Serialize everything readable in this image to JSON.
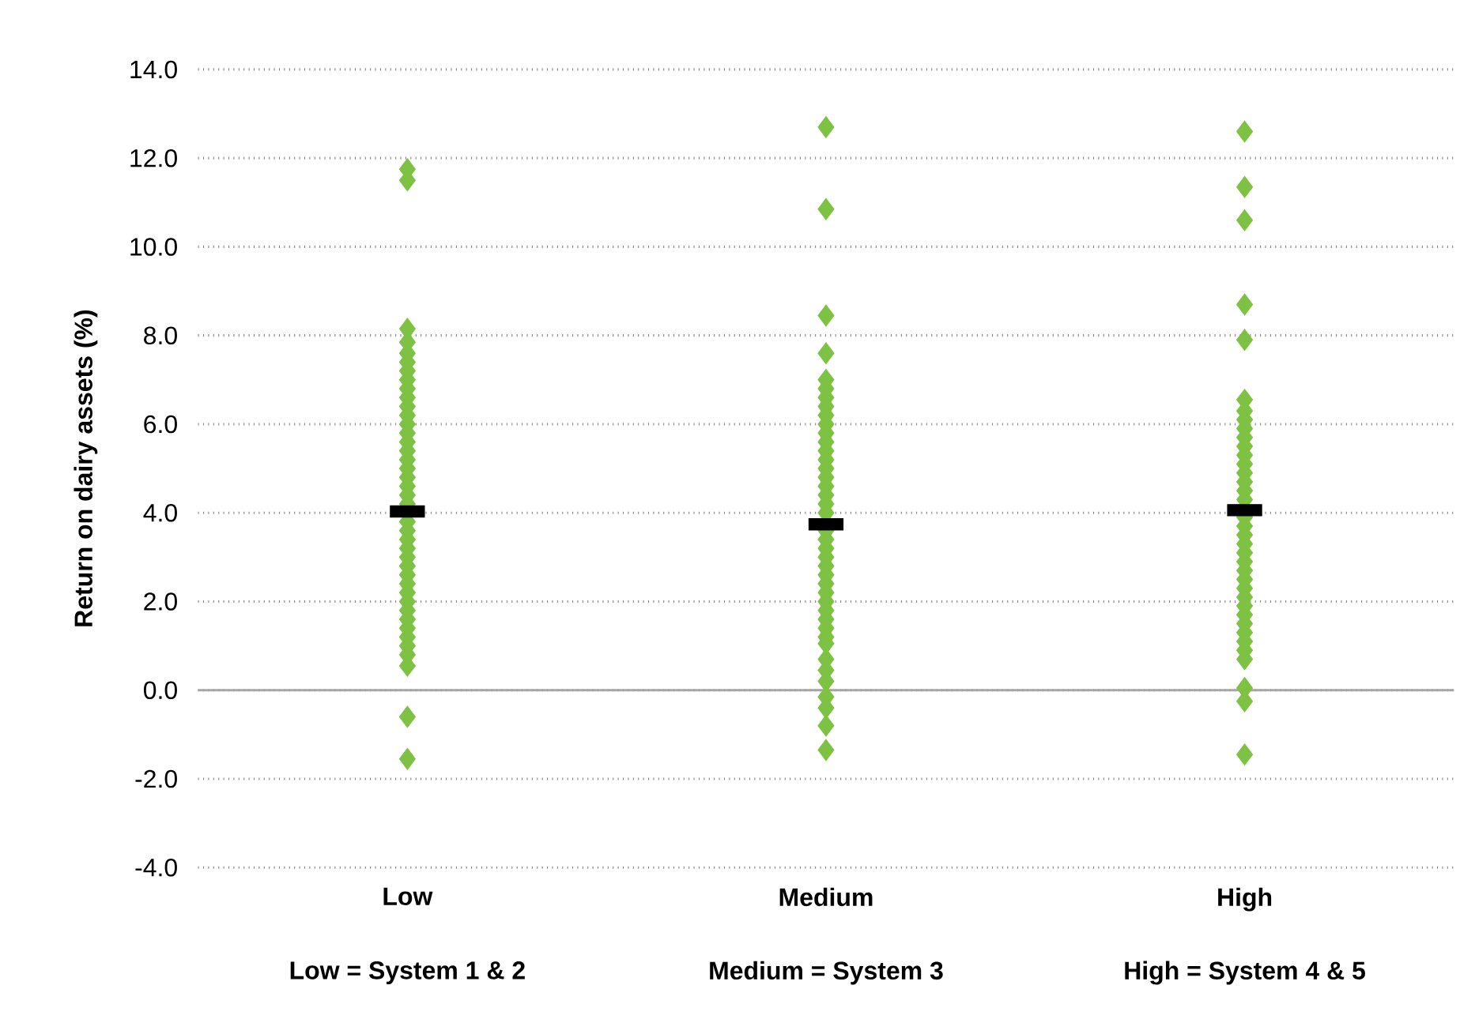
{
  "chart_data": {
    "type": "scatter",
    "ylabel": "Return on dairy assets (%)",
    "categories": [
      "Low",
      "Medium",
      "High"
    ],
    "ylim": [
      -4,
      14
    ],
    "yticks": [
      {
        "value": -4,
        "label": "-4.0"
      },
      {
        "value": -2,
        "label": "-2.0"
      },
      {
        "value": 0,
        "label": "0.0"
      },
      {
        "value": 2,
        "label": "2.0"
      },
      {
        "value": 4,
        "label": "4.0"
      },
      {
        "value": 6,
        "label": "6.0"
      },
      {
        "value": 8,
        "label": "8.0"
      },
      {
        "value": 10,
        "label": "10.0"
      },
      {
        "value": 12,
        "label": "12.0"
      },
      {
        "value": 14,
        "label": "14.0"
      }
    ],
    "grid": "y",
    "ref_lines": [
      {
        "axis": "y",
        "value": 0,
        "color": "#a6a6a6",
        "line_style": "solid"
      }
    ],
    "annotations": [
      "Low = System 1 & 2",
      "Medium = System 3",
      "High = System 4 & 5"
    ],
    "series": [
      {
        "color": "#7dc242",
        "marker": "diamond",
        "x": [
          "Low",
          "Low",
          "Low",
          "Low",
          "Low",
          "Low",
          "Low",
          "Low",
          "Low",
          "Low",
          "Low",
          "Low",
          "Low",
          "Low",
          "Low",
          "Low",
          "Low",
          "Low",
          "Low",
          "Low",
          "Low",
          "Low",
          "Low",
          "Low",
          "Low",
          "Low",
          "Low",
          "Low",
          "Low",
          "Low",
          "Low",
          "Low",
          "Low",
          "Low",
          "Low",
          "Low",
          "Low",
          "Low",
          "Low",
          "Low",
          "Low",
          "Medium",
          "Medium",
          "Medium",
          "Medium",
          "Medium",
          "Medium",
          "Medium",
          "Medium",
          "Medium",
          "Medium",
          "Medium",
          "Medium",
          "Medium",
          "Medium",
          "Medium",
          "Medium",
          "Medium",
          "Medium",
          "Medium",
          "Medium",
          "Medium",
          "Medium",
          "Medium",
          "Medium",
          "Medium",
          "Medium",
          "Medium",
          "Medium",
          "Medium",
          "Medium",
          "Medium",
          "Medium",
          "Medium",
          "Medium",
          "Medium",
          "Medium",
          "Medium",
          "Medium",
          "Medium",
          "Medium",
          "Medium",
          "High",
          "High",
          "High",
          "High",
          "High",
          "High",
          "High",
          "High",
          "High",
          "High",
          "High",
          "High",
          "High",
          "High",
          "High",
          "High",
          "High",
          "High",
          "High",
          "High",
          "High",
          "High",
          "High",
          "High",
          "High",
          "High",
          "High",
          "High",
          "High",
          "High",
          "High",
          "High",
          "High",
          "High",
          "High",
          "High",
          "High"
        ],
        "values": [
          11.75,
          11.5,
          8.15,
          7.85,
          7.6,
          7.4,
          7.2,
          7.0,
          6.8,
          6.6,
          6.4,
          6.2,
          6.0,
          5.8,
          5.6,
          5.4,
          5.2,
          5.0,
          4.8,
          4.6,
          4.4,
          4.2,
          3.8,
          3.6,
          3.4,
          3.2,
          3.0,
          2.8,
          2.6,
          2.4,
          2.2,
          2.0,
          1.8,
          1.6,
          1.4,
          1.2,
          1.0,
          0.8,
          0.55,
          -0.6,
          -1.55,
          12.7,
          10.85,
          8.45,
          7.6,
          7.0,
          6.8,
          6.6,
          6.4,
          6.2,
          6.0,
          5.8,
          5.6,
          5.4,
          5.2,
          5.0,
          4.8,
          4.6,
          4.4,
          4.2,
          4.0,
          3.6,
          3.4,
          3.2,
          3.0,
          2.8,
          2.6,
          2.4,
          2.2,
          2.0,
          1.8,
          1.6,
          1.4,
          1.2,
          1.05,
          0.7,
          0.45,
          0.2,
          -0.15,
          -0.4,
          -0.8,
          -1.35,
          12.6,
          11.35,
          10.6,
          8.7,
          7.9,
          6.55,
          6.3,
          6.1,
          5.9,
          5.7,
          5.5,
          5.3,
          5.1,
          4.9,
          4.7,
          4.5,
          4.3,
          3.9,
          3.7,
          3.5,
          3.3,
          3.1,
          2.9,
          2.7,
          2.5,
          2.3,
          2.1,
          1.9,
          1.7,
          1.5,
          1.3,
          1.1,
          0.9,
          0.7,
          0.05,
          -0.25,
          -1.45
        ]
      },
      {
        "color": "#000000",
        "marker": "square",
        "x": [
          "Low",
          "Medium",
          "High"
        ],
        "values": [
          4.03,
          3.74,
          4.06
        ]
      }
    ]
  }
}
